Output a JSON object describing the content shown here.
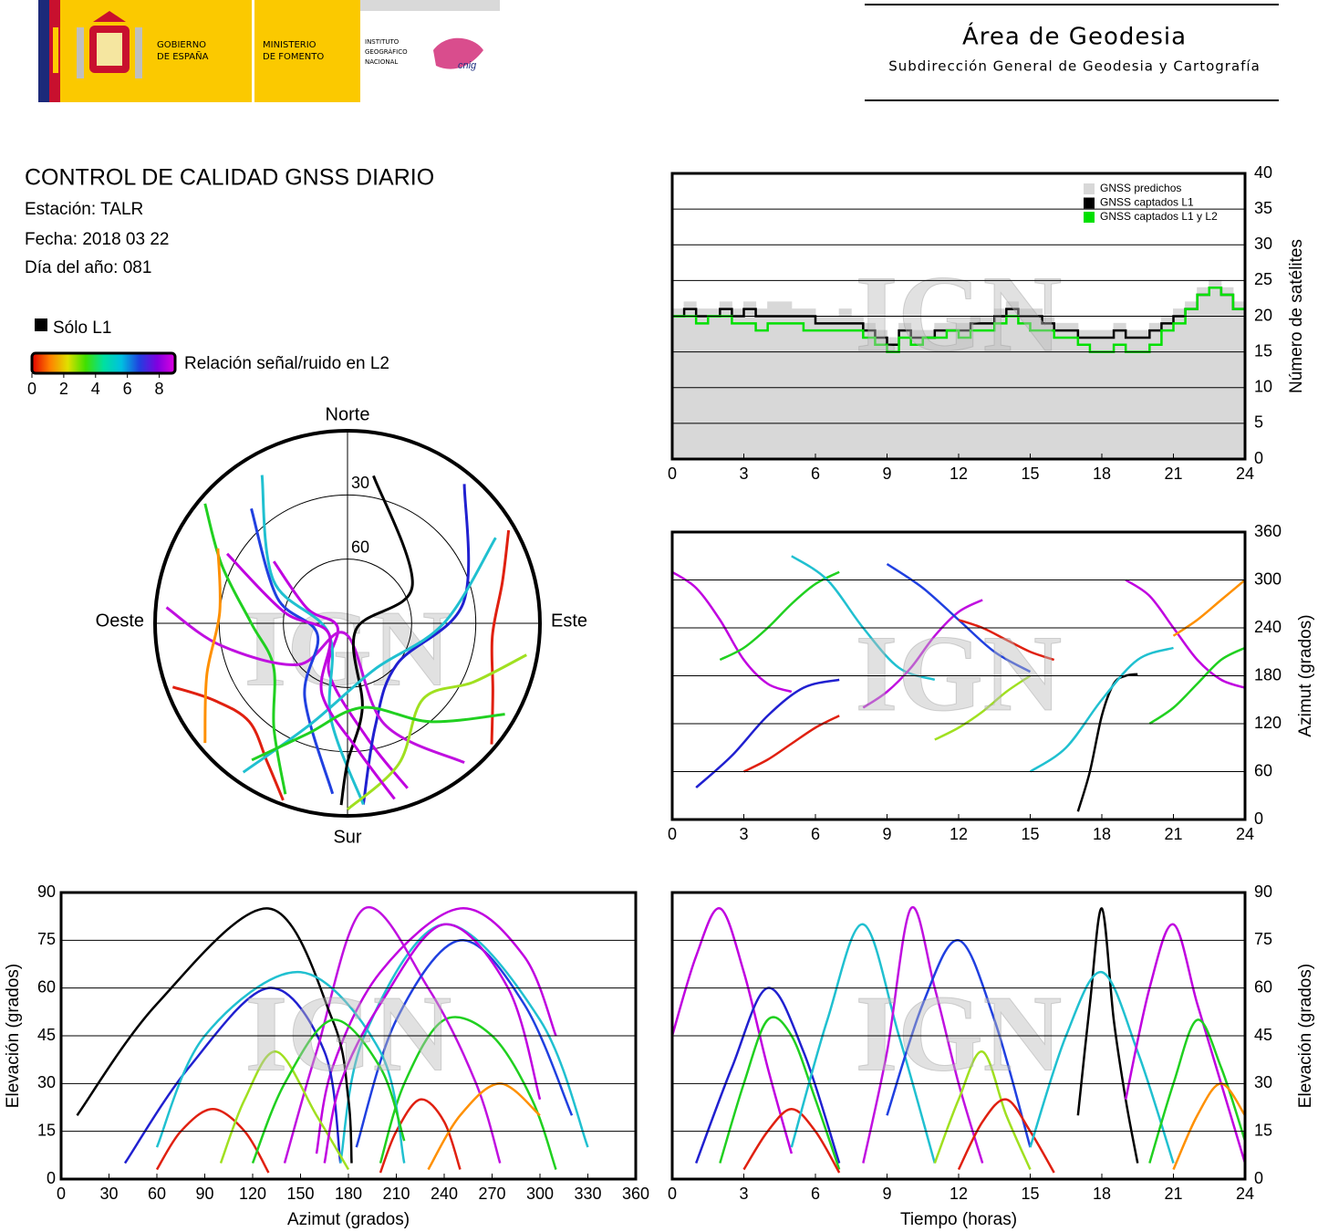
{
  "header": {
    "gov": [
      "GOBIERNO",
      "DE ESPAÑA"
    ],
    "ministry": [
      "MINISTERIO",
      "DE FOMENTO"
    ],
    "institute": [
      "INSTITUTO",
      "GEOGRÁFICO",
      "NACIONAL"
    ],
    "cnig": "cnig",
    "area": "Área de Geodesia",
    "subdirection": "Subdirección General de Geodesia y Cartografía"
  },
  "info": {
    "title": "CONTROL DE CALIDAD GNSS DIARIO",
    "station": "Estación: TALR",
    "date": "Fecha: 2018 03 22",
    "doy": "Día del año: 081"
  },
  "legend": {
    "l1_only": "Sólo L1",
    "l1_color": "#000000",
    "snr_label": "Relación señal/ruido en L2",
    "snr_lim": [
      0,
      9
    ],
    "snr_ticks": [
      0,
      2,
      4,
      6,
      8
    ],
    "snr_colors": [
      "#e00000",
      "#ff8000",
      "#e0e000",
      "#40e000",
      "#00e0a0",
      "#00c0e0",
      "#2040e0",
      "#8000e0",
      "#e000e0"
    ]
  },
  "watermark": "IGN",
  "satellite_passes": [
    {
      "color": "#c000e0",
      "t": [
        0,
        1,
        2,
        3,
        4,
        5
      ],
      "az": [
        310,
        290,
        250,
        200,
        170,
        160
      ],
      "el": [
        45,
        70,
        85,
        65,
        35,
        8
      ]
    },
    {
      "color": "#2020d0",
      "t": [
        1,
        2.5,
        4,
        5.5,
        7
      ],
      "az": [
        40,
        80,
        130,
        165,
        175
      ],
      "el": [
        5,
        35,
        60,
        40,
        5
      ]
    },
    {
      "color": "#20d020",
      "t": [
        2,
        3,
        4,
        5,
        6,
        7
      ],
      "az": [
        200,
        215,
        240,
        270,
        295,
        310
      ],
      "el": [
        5,
        30,
        50,
        45,
        25,
        3
      ]
    },
    {
      "color": "#e02010",
      "t": [
        3,
        4,
        5,
        6,
        7
      ],
      "az": [
        60,
        75,
        95,
        115,
        130
      ],
      "el": [
        3,
        15,
        22,
        15,
        2
      ]
    },
    {
      "color": "#20c0d0",
      "t": [
        5,
        6.5,
        8,
        9.5,
        11
      ],
      "az": [
        330,
        300,
        240,
        190,
        175
      ],
      "el": [
        10,
        50,
        80,
        45,
        5
      ]
    },
    {
      "color": "#c010e0",
      "t": [
        8,
        9,
        10,
        11,
        12,
        13
      ],
      "az": [
        140,
        160,
        190,
        230,
        260,
        275
      ],
      "el": [
        5,
        40,
        85,
        60,
        30,
        5
      ]
    },
    {
      "color": "#2040e0",
      "t": [
        9,
        10.5,
        12,
        13.5,
        15
      ],
      "az": [
        320,
        290,
        250,
        210,
        185
      ],
      "el": [
        20,
        55,
        75,
        50,
        10
      ]
    },
    {
      "color": "#a0e020",
      "t": [
        11,
        12,
        13,
        14,
        15
      ],
      "az": [
        100,
        115,
        135,
        160,
        180
      ],
      "el": [
        5,
        25,
        40,
        20,
        3
      ]
    },
    {
      "color": "#e02010",
      "t": [
        12,
        13,
        14,
        15,
        16
      ],
      "az": [
        250,
        240,
        225,
        210,
        200
      ],
      "el": [
        3,
        18,
        25,
        15,
        2
      ]
    },
    {
      "color": "#000000",
      "t": [
        17,
        17.5,
        18,
        18.5,
        19,
        19.5
      ],
      "az": [
        10,
        60,
        130,
        170,
        180,
        182
      ],
      "el": [
        20,
        55,
        85,
        50,
        25,
        5
      ]
    },
    {
      "color": "#20c0d0",
      "t": [
        15,
        16.5,
        18,
        19.5,
        21
      ],
      "az": [
        60,
        90,
        150,
        200,
        215
      ],
      "el": [
        10,
        45,
        65,
        40,
        5
      ]
    },
    {
      "color": "#c000e0",
      "t": [
        19,
        20,
        21,
        22,
        23,
        24
      ],
      "az": [
        300,
        280,
        240,
        200,
        175,
        165
      ],
      "el": [
        25,
        60,
        80,
        55,
        30,
        5
      ]
    },
    {
      "color": "#20d020",
      "t": [
        20,
        21,
        22,
        23,
        24
      ],
      "az": [
        120,
        140,
        170,
        200,
        215
      ],
      "el": [
        5,
        30,
        50,
        35,
        12
      ]
    },
    {
      "color": "#ff9000",
      "t": [
        21,
        22,
        23,
        24
      ],
      "az": [
        230,
        250,
        275,
        300
      ],
      "el": [
        3,
        20,
        30,
        20
      ]
    }
  ],
  "chart_data": [
    {
      "type": "polar",
      "directions": {
        "north": "Norte",
        "south": "Sur",
        "west": "Oeste",
        "east": "Este"
      },
      "rlim": [
        90,
        0
      ],
      "rticks": [
        30,
        60
      ]
    },
    {
      "type": "line",
      "ylabel": "Número de satélites",
      "legend": "top-right",
      "grid": "y",
      "xlim": [
        0,
        24
      ],
      "xticks": [
        0,
        3,
        6,
        9,
        12,
        15,
        18,
        21,
        24
      ],
      "ylim": [
        0,
        40
      ],
      "yticks": [
        0,
        5,
        10,
        15,
        20,
        25,
        30,
        35,
        40
      ],
      "x": [
        0,
        0.5,
        1,
        1.5,
        2,
        2.5,
        3,
        3.5,
        4,
        4.5,
        5,
        5.5,
        6,
        6.5,
        7,
        7.5,
        8,
        8.5,
        9,
        9.5,
        10,
        10.5,
        11,
        11.5,
        12,
        12.5,
        13,
        13.5,
        14,
        14.5,
        15,
        15.5,
        16,
        16.5,
        17,
        17.5,
        18,
        18.5,
        19,
        19.5,
        20,
        20.5,
        21,
        21.5,
        22,
        22.5,
        23,
        23.5,
        24
      ],
      "series": [
        {
          "name": "GNSS predichos",
          "color": "#d8d8d8",
          "values": [
            21,
            22,
            21,
            21,
            22,
            21,
            22,
            21,
            22,
            22,
            21,
            21,
            20,
            20,
            21,
            20,
            19,
            18,
            17,
            19,
            18,
            18,
            19,
            19,
            19,
            20,
            20,
            21,
            22,
            21,
            21,
            20,
            19,
            19,
            18,
            18,
            18,
            19,
            18,
            18,
            19,
            20,
            21,
            22,
            24,
            25,
            24,
            22,
            20
          ]
        },
        {
          "name": "GNSS captados L1",
          "color": "#000000",
          "values": [
            20,
            21,
            20,
            20,
            21,
            20,
            21,
            20,
            20,
            20,
            20,
            20,
            19,
            19,
            19,
            19,
            18,
            17,
            16,
            18,
            17,
            17,
            18,
            18,
            18,
            19,
            19,
            20,
            21,
            20,
            20,
            19,
            18,
            18,
            17,
            17,
            17,
            18,
            17,
            17,
            18,
            19,
            20,
            21,
            23,
            24,
            23,
            21,
            20
          ]
        },
        {
          "name": "GNSS captados L1 y L2",
          "color": "#00e000",
          "values": [
            20,
            20,
            19,
            20,
            20,
            19,
            19,
            18,
            19,
            19,
            19,
            18,
            18,
            18,
            18,
            18,
            17,
            16,
            15,
            17,
            16,
            17,
            17,
            18,
            17,
            18,
            18,
            19,
            20,
            19,
            18,
            18,
            17,
            17,
            16,
            15,
            15,
            16,
            15,
            15,
            16,
            18,
            19,
            21,
            23,
            24,
            23,
            21,
            20
          ]
        }
      ]
    },
    {
      "type": "line",
      "ylabel": "Azimut (grados)",
      "grid": "y",
      "xlim": [
        0,
        24
      ],
      "xticks": [
        0,
        3,
        6,
        9,
        12,
        15,
        18,
        21,
        24
      ],
      "ylim": [
        0,
        360
      ],
      "yticks": [
        0,
        60,
        120,
        180,
        240,
        300,
        360
      ]
    },
    {
      "type": "line",
      "xlabel": "Azimut (grados)",
      "ylabel": "Elevación (grados)",
      "grid": "y",
      "xlim": [
        0,
        360
      ],
      "xticks": [
        0,
        30,
        60,
        90,
        120,
        150,
        180,
        210,
        240,
        270,
        300,
        330,
        360
      ],
      "ylim": [
        0,
        90
      ],
      "yticks": [
        0,
        15,
        30,
        45,
        60,
        75,
        90
      ]
    },
    {
      "type": "line",
      "xlabel": "Tiempo (horas)",
      "ylabel": "Elevación (grados)",
      "grid": "y",
      "xlim": [
        0,
        24
      ],
      "xticks": [
        0,
        3,
        6,
        9,
        12,
        15,
        18,
        21,
        24
      ],
      "ylim": [
        0,
        90
      ],
      "yticks": [
        0,
        15,
        30,
        45,
        60,
        75,
        90
      ]
    }
  ]
}
